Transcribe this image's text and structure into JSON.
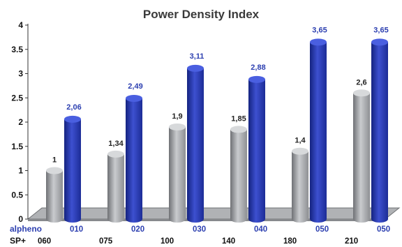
{
  "chart_data": {
    "type": "bar",
    "title": "Power Density Index",
    "ylim": [
      0,
      4
    ],
    "yticks": [
      "0",
      "0.5",
      "1",
      "1.5",
      "2",
      "2.5",
      "3",
      "3.5",
      "4"
    ],
    "category_rows": [
      {
        "label": "alpheno",
        "values": [
          "010",
          "020",
          "030",
          "040",
          "050",
          "050"
        ],
        "color": "#2c3fb0"
      },
      {
        "label": "SP+",
        "values": [
          "060",
          "075",
          "100",
          "140",
          "180",
          "210"
        ],
        "color": "#111111"
      }
    ],
    "series": [
      {
        "values": [
          1,
          1.34,
          1.9,
          1.85,
          1.4,
          2.6
        ],
        "labels": [
          "1",
          "1,34",
          "1,9",
          "1,85",
          "1,4",
          "2,6"
        ],
        "color": "#a7a9ac"
      },
      {
        "values": [
          2.06,
          2.49,
          3.11,
          2.88,
          3.65,
          3.65
        ],
        "labels": [
          "2,06",
          "2,49",
          "3,11",
          "2,88",
          "3,65",
          "3,65"
        ],
        "color": "#2536a8"
      }
    ],
    "grid": false
  }
}
